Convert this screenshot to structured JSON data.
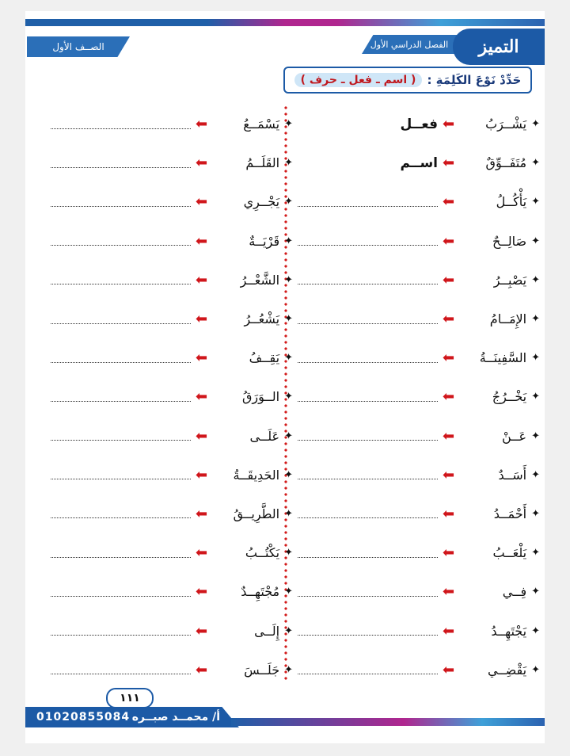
{
  "header": {
    "grade": "الصــف الأول",
    "term": "الفصل الدراسي الأول",
    "logo": "التميز",
    "instruction": "حَدِّدْ نَوْعَ الكَلِمَةِ :",
    "options": "( اسم ـ فعل ـ حرف )"
  },
  "right_column": [
    {
      "word": "يَشْــرَبُ",
      "answer": "فعــل"
    },
    {
      "word": "مُتَفَــوِّقٌ",
      "answer": "اســم"
    },
    {
      "word": "يَأْكُــلُ",
      "answer": ""
    },
    {
      "word": "صَالِــحٌ",
      "answer": ""
    },
    {
      "word": "يَصْبِــرُ",
      "answer": ""
    },
    {
      "word": "الإِمَــامُ",
      "answer": ""
    },
    {
      "word": "السَّفِينَــةُ",
      "answer": ""
    },
    {
      "word": "يَخْــرُجُ",
      "answer": ""
    },
    {
      "word": "عَــنْ",
      "answer": ""
    },
    {
      "word": "أَسَــدٌ",
      "answer": ""
    },
    {
      "word": "أَحْمَــدُ",
      "answer": ""
    },
    {
      "word": "يَلْعَــبُ",
      "answer": ""
    },
    {
      "word": "فِــي",
      "answer": ""
    },
    {
      "word": "يَجْتَهِــدُ",
      "answer": ""
    },
    {
      "word": "يَقْضِــي",
      "answer": ""
    }
  ],
  "left_column": [
    {
      "word": "يَسْمَــعُ"
    },
    {
      "word": "القَلَــمُ"
    },
    {
      "word": "يَجْــرِي"
    },
    {
      "word": "قَرْيَــةٌ"
    },
    {
      "word": "الشَّعْــرُ"
    },
    {
      "word": "يَشْعُــرُ"
    },
    {
      "word": "يَقِــفُ"
    },
    {
      "word": "الــوَرَقُ"
    },
    {
      "word": "عَلَــى"
    },
    {
      "word": "الحَدِيقَــةُ"
    },
    {
      "word": "الطَّرِيــقُ"
    },
    {
      "word": "يَكْتُــبُ"
    },
    {
      "word": "مُجْتَهِــدٌ"
    },
    {
      "word": "إِلَــى"
    },
    {
      "word": "جَلَــسَ"
    }
  ],
  "footer": {
    "page_number": "١١١",
    "teacher": "أ/ محمــد صبــره",
    "phone": "01020855084"
  },
  "colors": {
    "accent": "#1c5aa6",
    "arrow": "#d0161b",
    "magenta": "#b0268f"
  }
}
